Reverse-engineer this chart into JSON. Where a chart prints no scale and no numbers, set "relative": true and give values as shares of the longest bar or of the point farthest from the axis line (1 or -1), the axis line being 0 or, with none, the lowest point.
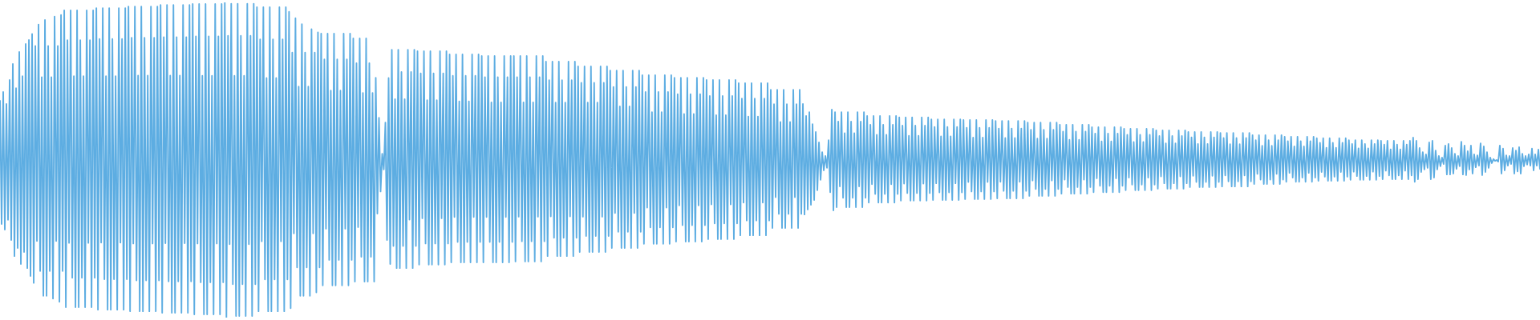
{
  "chart_data": {
    "type": "line",
    "relative": true,
    "color": "#5dade2",
    "categories": [
      null,
      null,
      null,
      null,
      null,
      null,
      null,
      null,
      null,
      null,
      null,
      null,
      null,
      null,
      null,
      null,
      null,
      null,
      null,
      null,
      null,
      null,
      null,
      null,
      null,
      null,
      null,
      null,
      null,
      null,
      null,
      null,
      null,
      null,
      null,
      null,
      null,
      null,
      null,
      null,
      null,
      null,
      null,
      null,
      null,
      null,
      null,
      null,
      null,
      null,
      null,
      null,
      null,
      null,
      null,
      null,
      null,
      null,
      null,
      null,
      null,
      null,
      null,
      null,
      null,
      null,
      null,
      null,
      null,
      null,
      null,
      null,
      null,
      null,
      null,
      null,
      null,
      null,
      null,
      null,
      null,
      null,
      null,
      null,
      null,
      null,
      null,
      null,
      null,
      null,
      null,
      null,
      null,
      null,
      null,
      null,
      null,
      null,
      null,
      null,
      null,
      null,
      null,
      null,
      null,
      null,
      null,
      null,
      null,
      null,
      null,
      null,
      null,
      null,
      null,
      null,
      null,
      null,
      null,
      null,
      null,
      null,
      null,
      null,
      null,
      null,
      null,
      null,
      null,
      null,
      null,
      null,
      null,
      null,
      null,
      null,
      null,
      null,
      null,
      null,
      null,
      null,
      null,
      null,
      null,
      null,
      null,
      null,
      null,
      null,
      null,
      null,
      null,
      null,
      null,
      null,
      null,
      null,
      null,
      null,
      null,
      null,
      null,
      null,
      null,
      null,
      null,
      null,
      null,
      null,
      null,
      null,
      null,
      null,
      null,
      null,
      null,
      null,
      null,
      null,
      null,
      null,
      null,
      null,
      null,
      null,
      null,
      null,
      null,
      null,
      null,
      null,
      null,
      null,
      null,
      null,
      null,
      null,
      null,
      null,
      null,
      null,
      null,
      null,
      null,
      null,
      null,
      null,
      null,
      null,
      null,
      null,
      null,
      null,
      null,
      null,
      null,
      null,
      null,
      null,
      null,
      null,
      null,
      null,
      null,
      null,
      null,
      null,
      null,
      null,
      null,
      null,
      null,
      null,
      null,
      null,
      null,
      null,
      null,
      null,
      null,
      null,
      null,
      null,
      null,
      null,
      null,
      null,
      null,
      null,
      null,
      null,
      null,
      null,
      null,
      null,
      null,
      null,
      null,
      null,
      null,
      null,
      null,
      null,
      null,
      null,
      null,
      null,
      null,
      null,
      null,
      null,
      null,
      null,
      null,
      null,
      null,
      null,
      null,
      null,
      null,
      null,
      null,
      null,
      null,
      null,
      null,
      null,
      null,
      null,
      null,
      null,
      null,
      null,
      null,
      null,
      null,
      null,
      null,
      null,
      null,
      null,
      null,
      null,
      null,
      null,
      null,
      null,
      null,
      null,
      null,
      null,
      null,
      null,
      null,
      null,
      null,
      null,
      null,
      null,
      null,
      null,
      null,
      null,
      null,
      null,
      null,
      null,
      null,
      null,
      null,
      null,
      null,
      null,
      null,
      null,
      null,
      null,
      null,
      null,
      null,
      null,
      null,
      null,
      null,
      null,
      null,
      null,
      null,
      null,
      null,
      null,
      null,
      null,
      null,
      null,
      null,
      null,
      null,
      null,
      null,
      null,
      null,
      null,
      null,
      null,
      null,
      null,
      null,
      null,
      null,
      null,
      null,
      null,
      null,
      null,
      null,
      null,
      null,
      null,
      null,
      null,
      null,
      null,
      null,
      null,
      null,
      null,
      null,
      null,
      null,
      null,
      null,
      null,
      null,
      null,
      null,
      null,
      null,
      null,
      null,
      null,
      null,
      null,
      null,
      null,
      null,
      null,
      null,
      null,
      null,
      null,
      null,
      null,
      null,
      null,
      null,
      null,
      null,
      null,
      null,
      null,
      null,
      null,
      null,
      null,
      null,
      null,
      null,
      null,
      null,
      null,
      null,
      null,
      null,
      null,
      null,
      null,
      null,
      null,
      null,
      null,
      null,
      null,
      null,
      null,
      null,
      null,
      null,
      null,
      null,
      null,
      null,
      null,
      null,
      null,
      null,
      null,
      null,
      null,
      null,
      null,
      null,
      null,
      null,
      null,
      null,
      null,
      null,
      null,
      null,
      null,
      null,
      null,
      null,
      null,
      null,
      null,
      null,
      null,
      null,
      null,
      null,
      null,
      null,
      null,
      null,
      null,
      null,
      null,
      null,
      null,
      null,
      null,
      null,
      null,
      null,
      null,
      null,
      null,
      null,
      null,
      null,
      null,
      null,
      null,
      null,
      null,
      null,
      null,
      null,
      null,
      null,
      null,
      null,
      null,
      null,
      null,
      null,
      null,
      null,
      null,
      null,
      null,
      null,
      null,
      null,
      null,
      null,
      null,
      null,
      null,
      null,
      null,
      null,
      null,
      null,
      null,
      null,
      null,
      null,
      null,
      null,
      null,
      null,
      null,
      null,
      null,
      null,
      null,
      null,
      null,
      null,
      null,
      null,
      null,
      null,
      null,
      null,
      null,
      null,
      null,
      null,
      null,
      null,
      null,
      null,
      null,
      null,
      null,
      null,
      null,
      null,
      null,
      null,
      null,
      null,
      null,
      null,
      null,
      null,
      null,
      null,
      null,
      null,
      null,
      null,
      null,
      null,
      null,
      null,
      null,
      null,
      null,
      null,
      null,
      null,
      null,
      null,
      null,
      null,
      null,
      null,
      null,
      null,
      null,
      null,
      null,
      null,
      null,
      null,
      null,
      null,
      null,
      null,
      null,
      null,
      null,
      null,
      null,
      null,
      null,
      null,
      null,
      null,
      null,
      null,
      null,
      null,
      null,
      null,
      null,
      null,
      null,
      null,
      null,
      null,
      null,
      null,
      null,
      null,
      null,
      null,
      null,
      null,
      null,
      null,
      null,
      null,
      null,
      null,
      null,
      null,
      null,
      null,
      null,
      null,
      null,
      null,
      null,
      null,
      null,
      null,
      null,
      null,
      null,
      null,
      null,
      null,
      null,
      null,
      null,
      null,
      null,
      null,
      null,
      null,
      null,
      null,
      null,
      null,
      null,
      null,
      null,
      null,
      null,
      null,
      null,
      null,
      null,
      null,
      null,
      null,
      null,
      null,
      null,
      null,
      null,
      null,
      null,
      null,
      null,
      null,
      null,
      null,
      null,
      null,
      null,
      null,
      null,
      null,
      null,
      null,
      null,
      null,
      null,
      null,
      null,
      null,
      null,
      null,
      null,
      null,
      null,
      null,
      null,
      null,
      null,
      null,
      null,
      null,
      null,
      null,
      null,
      null,
      null,
      null,
      null,
      null,
      null,
      null,
      null,
      null,
      null,
      null,
      null,
      null,
      null,
      null,
      null,
      null,
      null,
      null,
      null,
      null,
      null,
      null,
      null,
      null,
      null,
      null,
      null,
      null,
      null,
      null,
      null,
      null,
      null,
      null,
      null,
      null,
      null,
      null,
      null,
      null,
      null,
      null,
      null,
      null,
      null,
      null,
      null,
      null,
      null,
      null,
      null,
      null,
      null,
      null,
      null,
      null,
      null,
      null,
      null,
      null,
      null,
      null,
      null,
      null,
      null,
      null,
      null,
      null,
      null,
      null,
      null,
      null,
      null,
      null,
      null,
      null,
      null,
      null,
      null,
      null,
      null,
      null,
      null,
      null,
      null,
      null,
      null,
      null,
      null,
      null,
      null,
      null,
      null,
      null,
      null,
      null,
      null,
      null,
      null,
      null,
      null,
      null,
      null,
      null,
      null,
      null,
      null,
      null,
      null,
      null,
      null,
      null,
      null,
      null,
      null,
      null,
      null,
      null,
      null,
      null,
      null,
      null,
      null,
      null,
      null,
      null,
      null,
      null,
      null,
      null,
      null,
      null,
      null,
      null,
      null,
      null,
      null,
      null,
      null,
      null,
      null,
      null,
      null,
      null,
      null,
      null,
      null,
      null,
      null,
      null,
      null,
      null,
      null,
      null,
      null,
      null,
      null,
      null,
      null,
      null,
      null,
      null,
      null,
      null,
      null,
      null,
      null,
      null,
      null,
      null,
      null,
      null,
      null,
      null,
      null,
      null,
      null,
      null,
      null,
      null,
      null,
      null,
      null,
      null,
      null,
      null,
      null,
      null,
      null,
      null,
      null,
      null,
      null,
      null,
      null,
      null,
      null,
      null,
      null,
      null,
      null,
      null,
      null,
      null,
      null,
      null,
      null,
      null,
      null,
      null,
      null,
      null,
      null,
      null,
      null,
      null,
      null,
      null,
      null,
      null,
      null,
      null,
      null,
      null,
      null
    ],
    "values": [
      0.69,
      0.297,
      0.716,
      0.279,
      0.678,
      0.31,
      0.754,
      0.246,
      0.805,
      0.195,
      0.728,
      0.221,
      0.843,
      0.17,
      0.766,
      0.208,
      0.868,
      0.157,
      0.881,
      0.132,
      0.9,
      0.11,
      0.862,
      0.243,
      0.93,
      0.148,
      0.763,
      0.069,
      0.944,
      0.069,
      0.862,
      0.148,
      0.763,
      0.06,
      0.955,
      0.243,
      0.862,
      0.05,
      0.96,
      0.148,
      0.975,
      0.033,
      0.88,
      0.237,
      0.975,
      0.126,
      0.766,
      0.033,
      0.975,
      0.033,
      0.88,
      0.126,
      0.766,
      0.033,
      0.975,
      0.237,
      0.88,
      0.033,
      0.975,
      0.126,
      0.982,
      0.025,
      0.884,
      0.238,
      0.982,
      0.122,
      0.766,
      0.025,
      0.982,
      0.025,
      0.884,
      0.122,
      0.766,
      0.025,
      0.982,
      0.238,
      0.884,
      0.025,
      0.982,
      0.122,
      0.987,
      0.02,
      0.888,
      0.235,
      0.987,
      0.118,
      0.768,
      0.02,
      0.987,
      0.02,
      0.888,
      0.118,
      0.768,
      0.02,
      0.987,
      0.235,
      0.888,
      0.02,
      0.987,
      0.118,
      0.992,
      0.015,
      0.89,
      0.236,
      0.992,
      0.115,
      0.768,
      0.015,
      0.992,
      0.015,
      0.89,
      0.115,
      0.768,
      0.015,
      0.992,
      0.236,
      0.89,
      0.015,
      0.992,
      0.115,
      0.995,
      0.01,
      0.892,
      0.235,
      0.995,
      0.112,
      0.767,
      0.01,
      0.995,
      0.01,
      0.892,
      0.112,
      0.767,
      0.01,
      0.995,
      0.235,
      0.892,
      0.01,
      0.995,
      0.112,
      1.0,
      0.0,
      0.894,
      0.233,
      0.996,
      0.106,
      0.767,
      0.005,
      0.996,
      0.005,
      0.894,
      0.106,
      0.767,
      0.005,
      0.996,
      0.233,
      0.894,
      0.005,
      0.996,
      0.106,
      0.985,
      0.02,
      0.883,
      0.242,
      0.985,
      0.121,
      0.76,
      0.02,
      0.985,
      0.02,
      0.883,
      0.121,
      0.76,
      0.02,
      0.985,
      0.242,
      0.883,
      0.02,
      0.985,
      0.121,
      0.97,
      0.03,
      0.841,
      0.267,
      0.95,
      0.159,
      0.733,
      0.069,
      0.931,
      0.069,
      0.841,
      0.159,
      0.733,
      0.069,
      0.915,
      0.267,
      0.841,
      0.08,
      0.905,
      0.159,
      0.901,
      0.102,
      0.819,
      0.282,
      0.901,
      0.183,
      0.72,
      0.102,
      0.901,
      0.102,
      0.819,
      0.183,
      0.72,
      0.102,
      0.901,
      0.282,
      0.819,
      0.102,
      0.901,
      0.183,
      0.886,
      0.114,
      0.807,
      0.287,
      0.886,
      0.193,
      0.713,
      0.114,
      0.886,
      0.114,
      0.807,
      0.193,
      0.713,
      0.114,
      0.761,
      0.33,
      0.634,
      0.4,
      0.52,
      0.47,
      0.619,
      0.246,
      0.76,
      0.17,
      0.85,
      0.227,
      0.693,
      0.157,
      0.85,
      0.157,
      0.779,
      0.227,
      0.693,
      0.157,
      0.85,
      0.311,
      0.779,
      0.157,
      0.85,
      0.227,
      0.845,
      0.168,
      0.775,
      0.315,
      0.845,
      0.235,
      0.69,
      0.168,
      0.845,
      0.168,
      0.775,
      0.235,
      0.69,
      0.168,
      0.845,
      0.315,
      0.775,
      0.168,
      0.845,
      0.235,
      0.835,
      0.175,
      0.767,
      0.319,
      0.835,
      0.24,
      0.686,
      0.175,
      0.835,
      0.175,
      0.767,
      0.24,
      0.686,
      0.175,
      0.835,
      0.319,
      0.767,
      0.175,
      0.835,
      0.24,
      0.83,
      0.175,
      0.763,
      0.319,
      0.83,
      0.24,
      0.683,
      0.175,
      0.83,
      0.175,
      0.763,
      0.24,
      0.683,
      0.175,
      0.83,
      0.319,
      0.763,
      0.175,
      0.83,
      0.24,
      0.83,
      0.178,
      0.763,
      0.32,
      0.83,
      0.242,
      0.683,
      0.178,
      0.83,
      0.178,
      0.763,
      0.242,
      0.683,
      0.178,
      0.83,
      0.32,
      0.763,
      0.178,
      0.83,
      0.242,
      0.812,
      0.195,
      0.753,
      0.321,
      0.812,
      0.253,
      0.682,
      0.195,
      0.812,
      0.195,
      0.753,
      0.253,
      0.682,
      0.195,
      0.812,
      0.321,
      0.753,
      0.195,
      0.812,
      0.253,
      0.797,
      0.208,
      0.745,
      0.32,
      0.797,
      0.259,
      0.682,
      0.208,
      0.797,
      0.208,
      0.745,
      0.259,
      0.682,
      0.208,
      0.797,
      0.32,
      0.745,
      0.208,
      0.797,
      0.259,
      0.784,
      0.221,
      0.732,
      0.332,
      0.784,
      0.272,
      0.67,
      0.221,
      0.784,
      0.221,
      0.732,
      0.272,
      0.67,
      0.221,
      0.784,
      0.332,
      0.732,
      0.221,
      0.784,
      0.272,
      0.769,
      0.234,
      0.716,
      0.349,
      0.769,
      0.286,
      0.652,
      0.234,
      0.769,
      0.234,
      0.716,
      0.286,
      0.652,
      0.234,
      0.769,
      0.349,
      0.716,
      0.234,
      0.769,
      0.286,
      0.761,
      0.241,
      0.709,
      0.356,
      0.761,
      0.293,
      0.646,
      0.241,
      0.761,
      0.241,
      0.709,
      0.293,
      0.646,
      0.241,
      0.761,
      0.356,
      0.709,
      0.241,
      0.761,
      0.293,
      0.754,
      0.249,
      0.703,
      0.359,
      0.754,
      0.299,
      0.642,
      0.249,
      0.754,
      0.249,
      0.703,
      0.299,
      0.642,
      0.249,
      0.754,
      0.359,
      0.703,
      0.249,
      0.754,
      0.299,
      0.744,
      0.261,
      0.695,
      0.365,
      0.744,
      0.308,
      0.638,
      0.261,
      0.744,
      0.261,
      0.695,
      0.308,
      0.638,
      0.261,
      0.744,
      0.365,
      0.695,
      0.261,
      0.744,
      0.308,
      0.723,
      0.284,
      0.677,
      0.382,
      0.723,
      0.329,
      0.621,
      0.284,
      0.723,
      0.284,
      0.677,
      0.329,
      0.621,
      0.284,
      0.723,
      0.382,
      0.677,
      0.284,
      0.723,
      0.329,
      0.678,
      0.327,
      0.64,
      0.343,
      0.652,
      0.358,
      0.614,
      0.373,
      0.589,
      0.404,
      0.556,
      0.437,
      0.525,
      0.467,
      0.513,
      0.475,
      0.563,
      0.398,
      0.66,
      0.34,
      0.652,
      0.35,
      0.622,
      0.416,
      0.652,
      0.38,
      0.585,
      0.35,
      0.652,
      0.35,
      0.622,
      0.38,
      0.585,
      0.35,
      0.652,
      0.416,
      0.622,
      0.35,
      0.652,
      0.38,
      0.64,
      0.365,
      0.612,
      0.423,
      0.64,
      0.392,
      0.58,
      0.365,
      0.64,
      0.365,
      0.612,
      0.392,
      0.58,
      0.365,
      0.64,
      0.423,
      0.612,
      0.365,
      0.64,
      0.392,
      0.635,
      0.371,
      0.609,
      0.425,
      0.635,
      0.395,
      0.577,
      0.371,
      0.635,
      0.371,
      0.609,
      0.395,
      0.577,
      0.371,
      0.635,
      0.425,
      0.609,
      0.371,
      0.635,
      0.395,
      0.629,
      0.373,
      0.605,
      0.426,
      0.629,
      0.397,
      0.575,
      0.373,
      0.629,
      0.373,
      0.605,
      0.397,
      0.575,
      0.373,
      0.629,
      0.426,
      0.605,
      0.373,
      0.629,
      0.397,
      0.627,
      0.376,
      0.602,
      0.43,
      0.627,
      0.4,
      0.571,
      0.376,
      0.627,
      0.376,
      0.602,
      0.4,
      0.571,
      0.376,
      0.627,
      0.43,
      0.602,
      0.376,
      0.627,
      0.4,
      0.624,
      0.378,
      0.6,
      0.431,
      0.624,
      0.402,
      0.57,
      0.378,
      0.624,
      0.378,
      0.6,
      0.402,
      0.57,
      0.378,
      0.624,
      0.431,
      0.6,
      0.378,
      0.624,
      0.402,
      0.619,
      0.386,
      0.596,
      0.435,
      0.619,
      0.408,
      0.568,
      0.386,
      0.619,
      0.386,
      0.596,
      0.408,
      0.568,
      0.386,
      0.619,
      0.435,
      0.596,
      0.386,
      0.619,
      0.408,
      0.612,
      0.393,
      0.59,
      0.438,
      0.612,
      0.414,
      0.564,
      0.393,
      0.612,
      0.393,
      0.59,
      0.414,
      0.564,
      0.393,
      0.612,
      0.438,
      0.59,
      0.393,
      0.612,
      0.414,
      0.604,
      0.398,
      0.584,
      0.442,
      0.604,
      0.418,
      0.559,
      0.398,
      0.604,
      0.398,
      0.584,
      0.418,
      0.559,
      0.398,
      0.604,
      0.442,
      0.584,
      0.398,
      0.604,
      0.418,
      0.599,
      0.404,
      0.58,
      0.444,
      0.599,
      0.422,
      0.557,
      0.404,
      0.599,
      0.404,
      0.58,
      0.422,
      0.557,
      0.404,
      0.599,
      0.444,
      0.58,
      0.404,
      0.599,
      0.422,
      0.594,
      0.409,
      0.576,
      0.448,
      0.594,
      0.426,
      0.553,
      0.409,
      0.594,
      0.409,
      0.576,
      0.426,
      0.553,
      0.409,
      0.594,
      0.448,
      0.576,
      0.409,
      0.594,
      0.426,
      0.589,
      0.414,
      0.572,
      0.45,
      0.589,
      0.43,
      0.551,
      0.414,
      0.589,
      0.414,
      0.572,
      0.43,
      0.551,
      0.414,
      0.589,
      0.45,
      0.572,
      0.414,
      0.589,
      0.43,
      0.586,
      0.416,
      0.57,
      0.451,
      0.586,
      0.432,
      0.55,
      0.416,
      0.586,
      0.416,
      0.57,
      0.432,
      0.55,
      0.416,
      0.586,
      0.451,
      0.57,
      0.416,
      0.586,
      0.432,
      0.579,
      0.424,
      0.563,
      0.456,
      0.579,
      0.438,
      0.545,
      0.424,
      0.579,
      0.424,
      0.563,
      0.438,
      0.545,
      0.424,
      0.579,
      0.456,
      0.563,
      0.424,
      0.579,
      0.438,
      0.574,
      0.431,
      0.56,
      0.459,
      0.574,
      0.444,
      0.543,
      0.431,
      0.574,
      0.431,
      0.56,
      0.444,
      0.543,
      0.431,
      0.574,
      0.459,
      0.56,
      0.431,
      0.574,
      0.444,
      0.569,
      0.434,
      0.555,
      0.462,
      0.569,
      0.447,
      0.539,
      0.434,
      0.569,
      0.434,
      0.555,
      0.447,
      0.539,
      0.434,
      0.569,
      0.462,
      0.555,
      0.434,
      0.569,
      0.447,
      0.563,
      0.437,
      0.551,
      0.463,
      0.563,
      0.449,
      0.537,
      0.437,
      0.563,
      0.437,
      0.551,
      0.449,
      0.537,
      0.437,
      0.563,
      0.463,
      0.551,
      0.437,
      0.563,
      0.449,
      0.561,
      0.439,
      0.549,
      0.466,
      0.561,
      0.451,
      0.534,
      0.439,
      0.561,
      0.439,
      0.549,
      0.451,
      0.534,
      0.439,
      0.561,
      0.466,
      0.549,
      0.439,
      0.561,
      0.451,
      0.571,
      0.431,
      0.561,
      0.439,
      0.538,
      0.462,
      0.525,
      0.47,
      0.518,
      0.475,
      0.556,
      0.439,
      0.561,
      0.444,
      0.53,
      0.47,
      0.513,
      0.48,
      0.508,
      0.487,
      0.546,
      0.454,
      0.551,
      0.454,
      0.538,
      0.457,
      0.52,
      0.472,
      0.513,
      0.48,
      0.558,
      0.454,
      0.546,
      0.452,
      0.528,
      0.47,
      0.546,
      0.457,
      0.518,
      0.477,
      0.515,
      0.482,
      0.553,
      0.452,
      0.543,
      0.462,
      0.525,
      0.475,
      0.508,
      0.49,
      0.503,
      0.497,
      0.5,
      0.495,
      0.546,
      0.457,
      0.536,
      0.467,
      0.515,
      0.482,
      0.513,
      0.487,
      0.538,
      0.457,
      0.53,
      0.464,
      0.541,
      0.457,
      0.52,
      0.48,
      0.513,
      0.485,
      0.518,
      0.482,
      0.536,
      0.467,
      0.518,
      0.482,
      0.533,
      0.47
    ]
  }
}
